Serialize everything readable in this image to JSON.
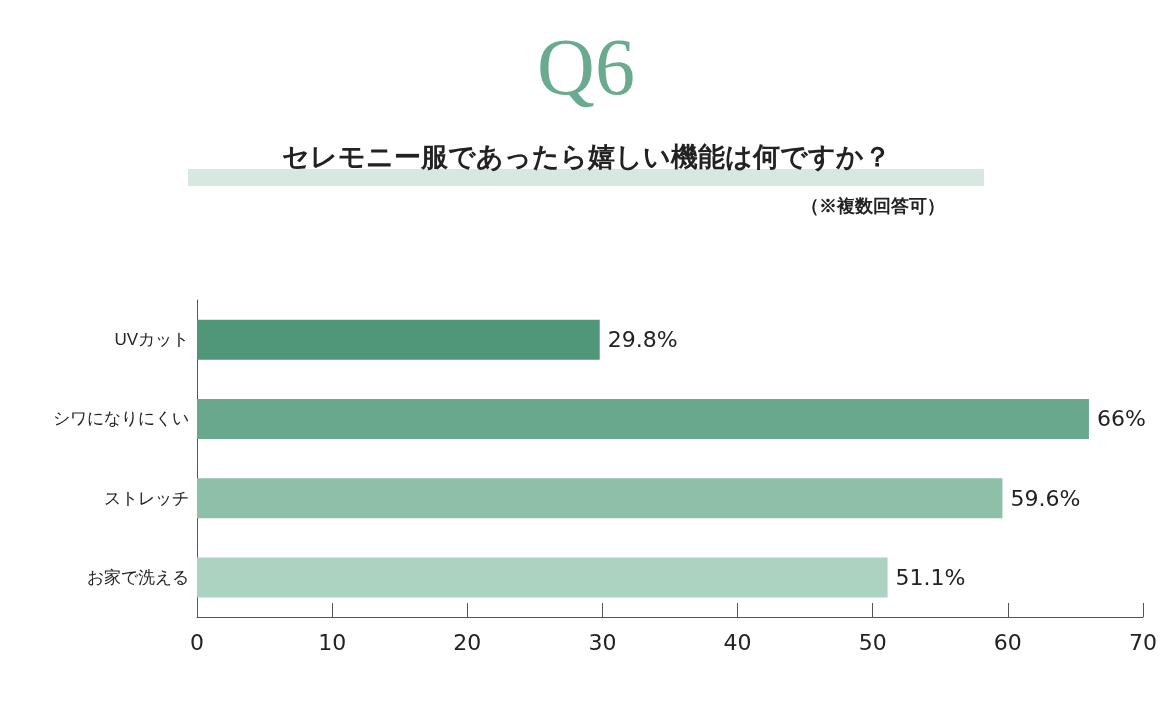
{
  "chart_data": {
    "type": "bar",
    "orientation": "horizontal",
    "title": "Q6",
    "subtitle": "セレモニー服であったら嬉しい機能は何ですか？",
    "annotations": [
      "（※複数回答可）"
    ],
    "categories": [
      "UVカット",
      "シワになりにくい",
      "ストレッチ",
      "お家で洗える"
    ],
    "values": [
      29.8,
      66,
      59.6,
      51.1
    ],
    "value_labels": [
      "29.8%",
      "66%",
      "59.6%",
      "51.1%"
    ],
    "colors": [
      "#4f9778",
      "#6aa88e",
      "#8dbfa9",
      "#acd2c1"
    ],
    "xlim": [
      0,
      70
    ],
    "xticks": [
      0,
      10,
      20,
      30,
      40,
      50,
      60,
      70
    ],
    "grid": false
  }
}
